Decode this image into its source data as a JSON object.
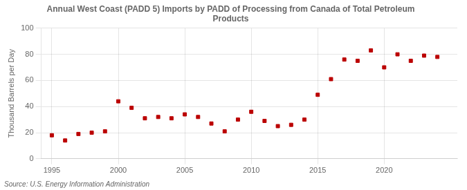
{
  "chart_data": {
    "type": "scatter",
    "title": "Annual West Coast (PADD 5) Imports by PADD of Processing from Canada of Total Petroleum\nProducts",
    "ylabel": "Thousand Barrels per Day",
    "annotation": "Source: U.S. Energy Information Administration",
    "x": [
      1995,
      1996,
      1997,
      1998,
      1999,
      2000,
      2001,
      2002,
      2003,
      2004,
      2005,
      2006,
      2007,
      2008,
      2009,
      2010,
      2011,
      2012,
      2013,
      2014,
      2015,
      2016,
      2017,
      2018,
      2019,
      2020,
      2021,
      2022,
      2023,
      2024
    ],
    "values": [
      18,
      14,
      19,
      20,
      21,
      44,
      39,
      31,
      32,
      31,
      34,
      32,
      27,
      21,
      30,
      36,
      29,
      25,
      26,
      30,
      49,
      61,
      76,
      75,
      83,
      70,
      80,
      75,
      79,
      78
    ],
    "color": "#bb0000",
    "marker": "square",
    "xlim": [
      1994.2,
      2025.5
    ],
    "ylim": [
      0,
      100
    ],
    "xticks": [
      1995,
      2000,
      2005,
      2010,
      2015,
      2020
    ],
    "yticks": [
      0,
      20,
      40,
      60,
      80,
      100
    ],
    "grid": true
  }
}
